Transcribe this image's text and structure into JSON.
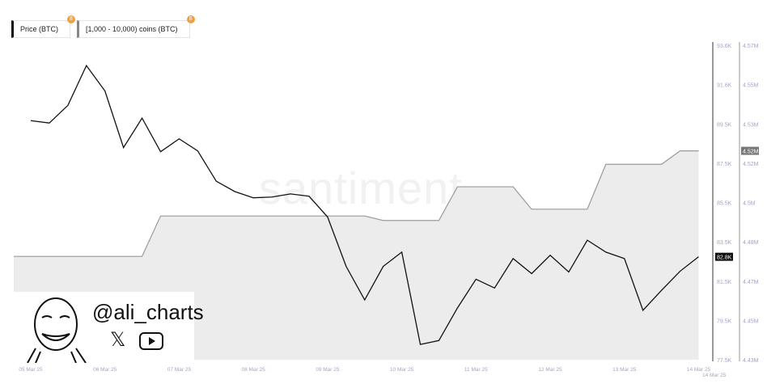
{
  "legend": {
    "price_label": "Price (BTC)",
    "holdings_label": "[1,000 - 10,000) coins (BTC)",
    "badge": "8"
  },
  "watermark": "santiment",
  "overlay": {
    "handle": "@ali_charts",
    "x_icon": "x-logo-icon",
    "youtube_icon": "youtube-icon"
  },
  "colors": {
    "price": "#111111",
    "holdings_line": "#9a9a9a",
    "holdings_fill": "#ececec",
    "axis": "#9a9a9a",
    "tick": "#a9a3bf"
  },
  "chart_data": {
    "type": "line",
    "x_tick_labels": [
      "05 Mar 25",
      "06 Mar 25",
      "07 Mar 25",
      "08 Mar 25",
      "09 Mar 25",
      "10 Mar 25",
      "11 Mar 25",
      "12 Mar 25",
      "13 Mar 25",
      "14 Mar 25",
      "14 Mar 25"
    ],
    "y_left": {
      "ticks": [
        "93.6K",
        "91.6K",
        "89.5K",
        "87.5K",
        "85.5K",
        "83.5K",
        "81.5K",
        "79.5K",
        "77.5K"
      ],
      "range": [
        77.5,
        93.6
      ],
      "current_label": "82.8K"
    },
    "y_right": {
      "ticks": [
        "4.57M",
        "4.55M",
        "4.53M",
        "4.52M",
        "4.5M",
        "4.48M",
        "4.47M",
        "4.45M",
        "4.43M"
      ],
      "range": [
        4.43,
        4.57
      ],
      "current_label": "4.52M"
    },
    "series": [
      {
        "name": "Price (BTC)",
        "unit": "K USD",
        "values": [
          89.74,
          89.62,
          90.52,
          92.56,
          91.26,
          88.36,
          89.87,
          88.15,
          88.81,
          88.19,
          86.64,
          86.11,
          85.79,
          85.83,
          85.99,
          85.87,
          84.81,
          82.28,
          80.56,
          82.28,
          83.01,
          78.28,
          78.48,
          80.15,
          81.62,
          81.17,
          82.68,
          81.91,
          82.85,
          81.99,
          83.62,
          83.01,
          82.68,
          80.03,
          81.05,
          82.03,
          82.77
        ]
      },
      {
        "name": "[1,000 - 10,000) coins (BTC)",
        "unit": "M",
        "type": "area",
        "values": [
          4.476,
          4.476,
          4.476,
          4.476,
          4.476,
          4.476,
          4.476,
          4.494,
          4.494,
          4.494,
          4.494,
          4.494,
          4.494,
          4.494,
          4.494,
          4.494,
          4.494,
          4.494,
          4.494,
          4.492,
          4.492,
          4.492,
          4.492,
          4.507,
          4.507,
          4.507,
          4.507,
          4.497,
          4.497,
          4.497,
          4.497,
          4.517,
          4.517,
          4.517,
          4.517,
          4.523,
          4.523
        ]
      }
    ],
    "interval": "6h"
  }
}
